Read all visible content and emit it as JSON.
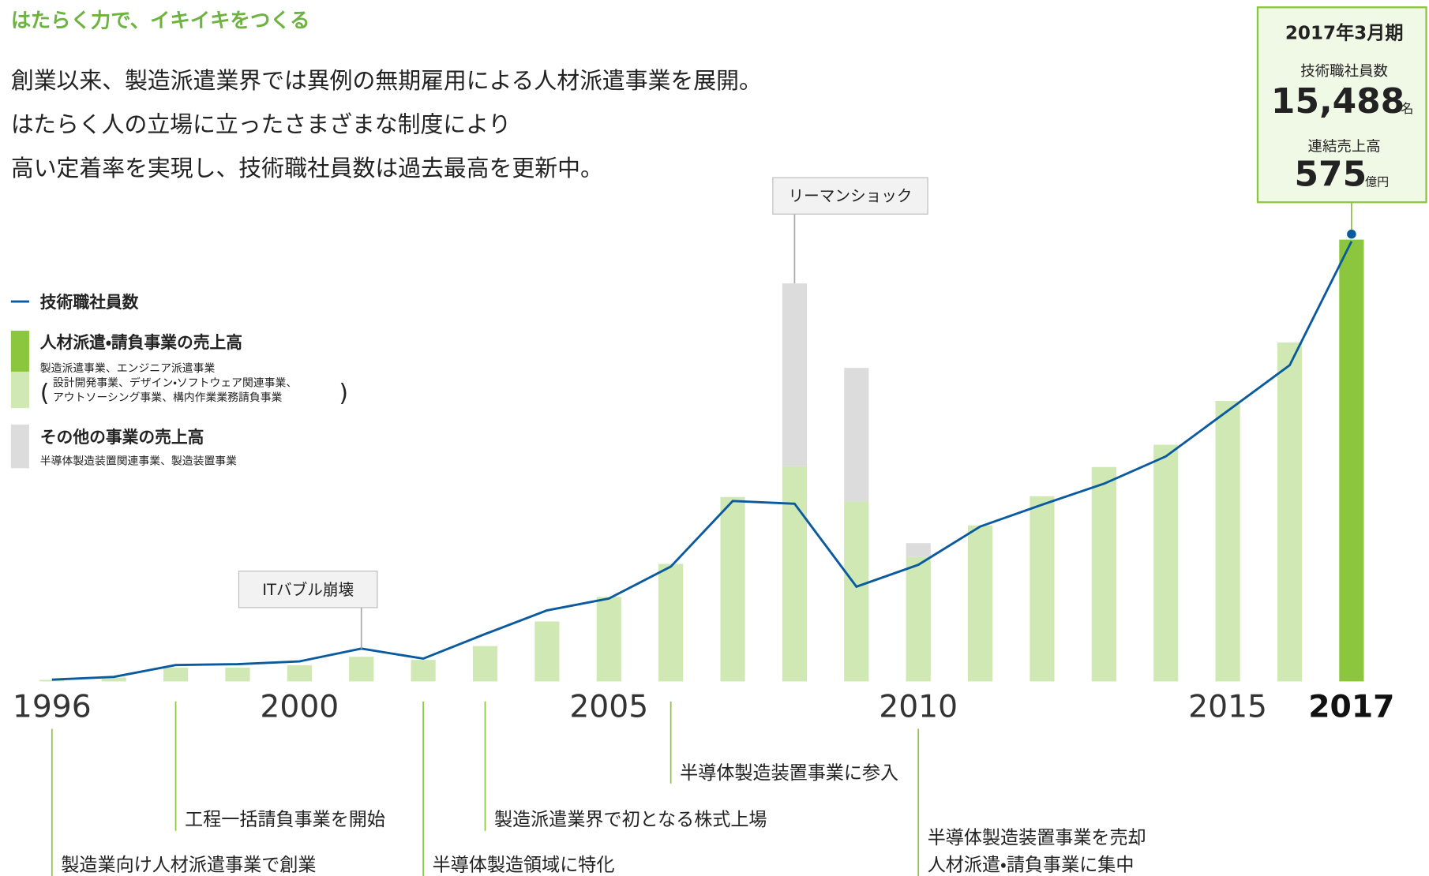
{
  "chart_data": {
    "type": "bar-line",
    "title": "はたらく力で、イキイキをつくる",
    "description": [
      "創業以来、製造派遣業界では異例の無期雇用による人材派遣事業を展開。",
      "はたらく人の立場に立ったさまざまな制度により",
      "高い定着率を実現し、技術職社員数は過去最高を更新中。"
    ],
    "categories": [
      "1996",
      null,
      null,
      null,
      "2000",
      null,
      null,
      null,
      null,
      "2005",
      null,
      null,
      null,
      null,
      "2010",
      null,
      null,
      null,
      null,
      "2015",
      null,
      "2017"
    ],
    "ylim": [
      0,
      575
    ],
    "y2lim": [
      0,
      15488
    ],
    "highlight": {
      "category": "2017",
      "color": "#8cc63f"
    },
    "series": [
      {
        "name": "人材派遣・請負事業の売上高",
        "color": "#cfe8b4",
        "description": [
          "製造派遣事業、エンジニア派遣事業",
          "設計開発事業、デザイン・ソフトウェア関連事業、",
          "アウトソーシング事業、構内作業業務請負事業"
        ],
        "values": [
          2,
          5,
          18,
          18,
          21,
          32,
          28,
          46,
          78,
          110,
          153,
          240,
          280,
          234,
          162,
          203,
          241,
          279,
          308,
          365,
          441,
          575
        ]
      },
      {
        "name": "その他の事業の売上高",
        "color": "#dcdcdc",
        "description": [
          "半導体製造装置関連事業、製造装置事業"
        ],
        "values": [
          null,
          null,
          null,
          null,
          null,
          null,
          null,
          null,
          null,
          null,
          null,
          null,
          238,
          174,
          18,
          null,
          null,
          null,
          null,
          null,
          null,
          null
        ]
      },
      {
        "name": "技術職社員数",
        "color": "#0a5aa0",
        "axis": "y2",
        "values": [
          64,
          160,
          577,
          609,
          706,
          1155,
          802,
          1668,
          2501,
          2918,
          4041,
          6350,
          6254,
          3335,
          4105,
          5452,
          6222,
          6959,
          7921,
          9525,
          11128,
          15488
        ]
      }
    ],
    "callouts": [
      "ITバブル崩壊",
      "リーマンショック"
    ],
    "events": [
      [
        "製造業向け人材派遣事業で創業"
      ],
      [
        "工程一括請負事業を開始"
      ],
      [
        "半導体製造領域に特化"
      ],
      [
        "製造派遣業界で初となる株式上場"
      ],
      [
        "半導体製造装置事業に参入"
      ],
      [
        "半導体製造装置事業を売却",
        "人材派遣・請負事業に集中"
      ]
    ],
    "summary": {
      "period": "2017年3月期",
      "employees_label": "技術職社員数",
      "employees": "15,488",
      "employees_unit": "名",
      "sales_label": "連結売上高",
      "sales": "575",
      "sales_unit": "億円"
    }
  }
}
